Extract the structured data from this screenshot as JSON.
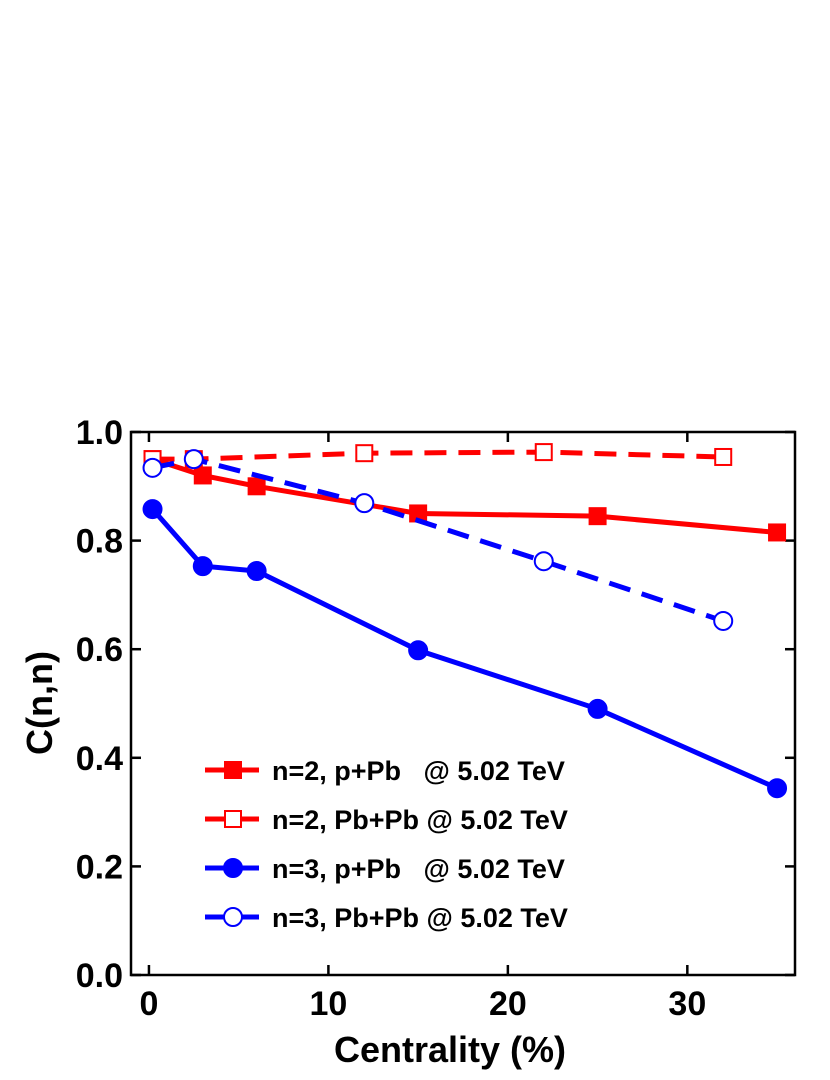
{
  "chart_data": {
    "type": "line",
    "xlabel": "Centrality (%)",
    "ylabel": "C(n,n)",
    "xlim": [
      -1,
      36
    ],
    "ylim": [
      0,
      1
    ],
    "xticks": [
      0,
      10,
      20,
      30
    ],
    "yticks": [
      {
        "value": 0,
        "label": "0.0"
      },
      {
        "value": 0.2,
        "label": "0.2"
      },
      {
        "value": 0.4,
        "label": "0.4"
      },
      {
        "value": 0.6,
        "label": "0.6"
      },
      {
        "value": 0.8,
        "label": "0.8"
      },
      {
        "value": 1,
        "label": "1.0"
      }
    ],
    "series": [
      {
        "name": "n=2, p+Pb   @ 5.02 TeV",
        "color": "#ff0000",
        "line_style": "solid",
        "marker": "square",
        "filled": true,
        "x": [
          0.2,
          3,
          6,
          15,
          25,
          35
        ],
        "values": [
          0.95,
          0.92,
          0.9,
          0.85,
          0.845,
          0.815
        ]
      },
      {
        "name": "n=2, Pb+Pb @ 5.02 TeV",
        "color": "#ff0000",
        "line_style": "dashed",
        "marker": "square",
        "filled": false,
        "x": [
          0.2,
          2.5,
          12,
          22,
          32
        ],
        "values": [
          0.95,
          0.95,
          0.961,
          0.963,
          0.954
        ]
      },
      {
        "name": "n=3, p+Pb   @ 5.02 TeV",
        "color": "#0000ff",
        "line_style": "solid",
        "marker": "circle",
        "filled": true,
        "x": [
          0.2,
          3,
          6,
          15,
          25,
          35
        ],
        "values": [
          0.858,
          0.753,
          0.744,
          0.598,
          0.49,
          0.344
        ]
      },
      {
        "name": "n=3, Pb+Pb @ 5.02 TeV",
        "color": "#0000ff",
        "line_style": "dashed",
        "marker": "circle",
        "filled": false,
        "x": [
          0.2,
          2.5,
          12,
          22,
          32
        ],
        "values": [
          0.934,
          0.95,
          0.869,
          0.762,
          0.652
        ]
      }
    ]
  }
}
